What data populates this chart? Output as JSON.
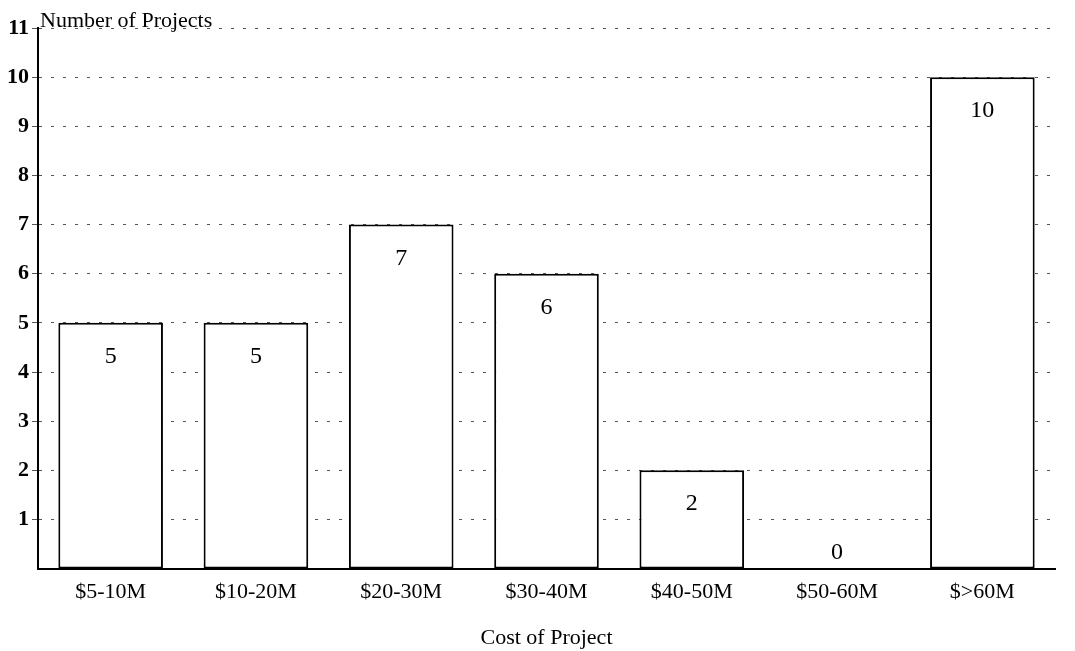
{
  "chart_data": {
    "type": "bar",
    "xlabel": "Cost of Project",
    "ylabel": "Number of Projects",
    "categories": [
      "$5-10M",
      "$10-20M",
      "$20-30M",
      "$30-40M",
      "$40-50M",
      "$50-60M",
      "$>60M"
    ],
    "values": [
      5,
      5,
      7,
      6,
      2,
      0,
      10
    ],
    "color": "#ffffff",
    "ylim": [
      0,
      11
    ],
    "yticks": [
      1,
      2,
      3,
      4,
      5,
      6,
      7,
      8,
      9,
      10,
      11
    ],
    "grid": "y",
    "data_labels": true,
    "legend": false
  }
}
